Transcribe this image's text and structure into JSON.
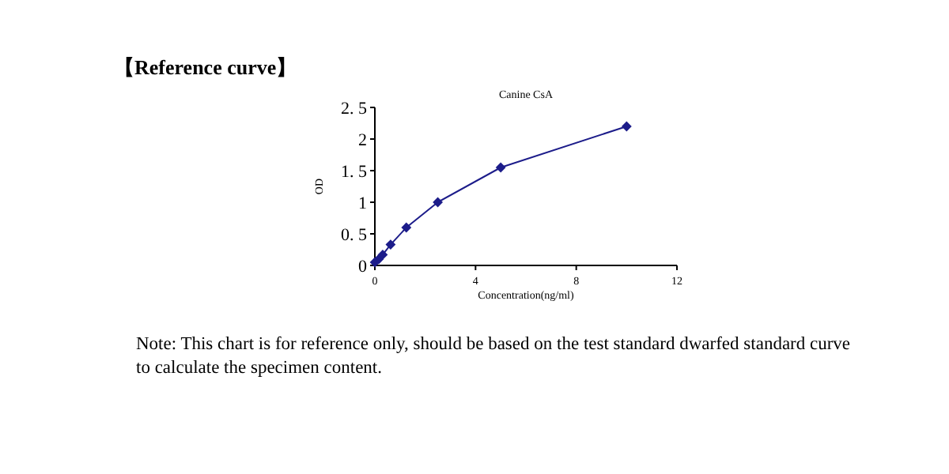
{
  "chart_data": {
    "type": "line",
    "title": "Canine CsA",
    "xlabel": "Concentration(ng/ml)",
    "ylabel": "OD",
    "annotations": [
      "【Reference curve】",
      "Note: This chart is for reference only, should be based on the test standard dwarfed standard curve to calculate the specimen content."
    ],
    "x": [
      0,
      0.156,
      0.3125,
      0.625,
      1.25,
      2.5,
      5,
      10
    ],
    "series": [
      {
        "color": "#1c1c8a",
        "values": [
          0.05,
          0.1,
          0.17,
          0.33,
          0.6,
          1.0,
          1.55,
          2.2
        ]
      }
    ],
    "marker": "diamond",
    "line_style": "solid",
    "xlim": [
      0,
      12
    ],
    "xticks": [
      0,
      4,
      8,
      12
    ],
    "ylim": [
      0,
      2.5
    ],
    "yticks": [
      0,
      {
        "value": 0.5,
        "label": "0. 5"
      },
      1,
      {
        "value": 1.5,
        "label": "1. 5"
      },
      2,
      {
        "value": 2.5,
        "label": "2. 5"
      }
    ]
  }
}
